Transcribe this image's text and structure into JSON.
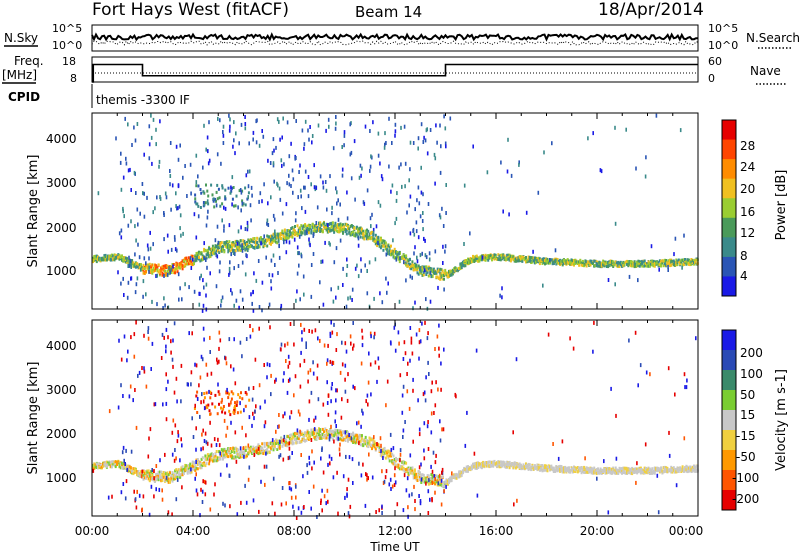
{
  "header": {
    "title": "Fort Hays West (fitACF)",
    "beam": "Beam 14",
    "date": "18/Apr/2014"
  },
  "nsky_panel": {
    "left_label": "N.Sky",
    "right_label": "N.Search",
    "left_ticks": [
      "10^5",
      "10^0"
    ],
    "right_ticks": [
      "10^5",
      "10^0"
    ]
  },
  "freq_panel": {
    "left_label_1": "Freq.",
    "left_label_2": "[MHz]",
    "right_label": "Nave",
    "left_ticks": [
      "18",
      "8"
    ],
    "right_ticks": [
      "60",
      "0"
    ]
  },
  "cpid": {
    "label": "CPID",
    "value": "themis -3300 IF"
  },
  "x_axis": {
    "title": "Time UT",
    "ticks": [
      "00:00",
      "04:00",
      "08:00",
      "12:00",
      "16:00",
      "20:00",
      "00:00"
    ]
  },
  "power_panel": {
    "ylabel": "Slant Range [km]",
    "yticks": [
      "1000",
      "2000",
      "3000",
      "4000"
    ],
    "colorbar_label": "Power [dB]",
    "colorbar_ticks": [
      "4",
      "8",
      "12",
      "16",
      "20",
      "24",
      "28"
    ],
    "colors": [
      "#1a1ae6",
      "#2a55b5",
      "#3a8a8a",
      "#4a9a5a",
      "#9acd32",
      "#f0c020",
      "#ff8c00",
      "#ff4500",
      "#e60000"
    ]
  },
  "velocity_panel": {
    "ylabel": "Slant Range [km]",
    "yticks": [
      "1000",
      "2000",
      "3000",
      "4000"
    ],
    "colorbar_label": "Velocity [m s-1]",
    "colorbar_ticks": [
      "200",
      "100",
      "50",
      "15",
      "-15",
      "-50",
      "-100",
      "-200"
    ],
    "colors": [
      "#1a1ae6",
      "#2a4ab5",
      "#3a8a6a",
      "#7acd32",
      "#c8c8c8",
      "#f0d040",
      "#ff9900",
      "#ff5500",
      "#e60000"
    ]
  },
  "chart_data": {
    "type": "heatmap",
    "x_unit": "hours UT",
    "xlim": [
      0,
      24
    ],
    "ylim": [
      300,
      4500
    ],
    "freq_steps": [
      {
        "t_start": 0,
        "t_end": 0.05,
        "freq_mhz": 8
      },
      {
        "t_start": 0.05,
        "t_end": 2,
        "freq_mhz": 15
      },
      {
        "t_start": 2,
        "t_end": 14,
        "freq_mhz": 10.5
      },
      {
        "t_start": 14,
        "t_end": 24,
        "freq_mhz": 15
      }
    ],
    "scatter_echo_band": {
      "description_points_time_h": [
        0,
        1,
        2,
        3,
        4,
        5,
        6,
        7,
        8,
        9,
        10,
        11,
        12,
        13,
        14,
        15,
        16,
        18,
        20,
        22,
        24
      ],
      "slant_range_km": [
        1400,
        1450,
        1200,
        1150,
        1400,
        1650,
        1700,
        1800,
        2000,
        2100,
        2050,
        1900,
        1500,
        1150,
        1050,
        1400,
        1450,
        1350,
        1300,
        1300,
        1350
      ]
    }
  }
}
